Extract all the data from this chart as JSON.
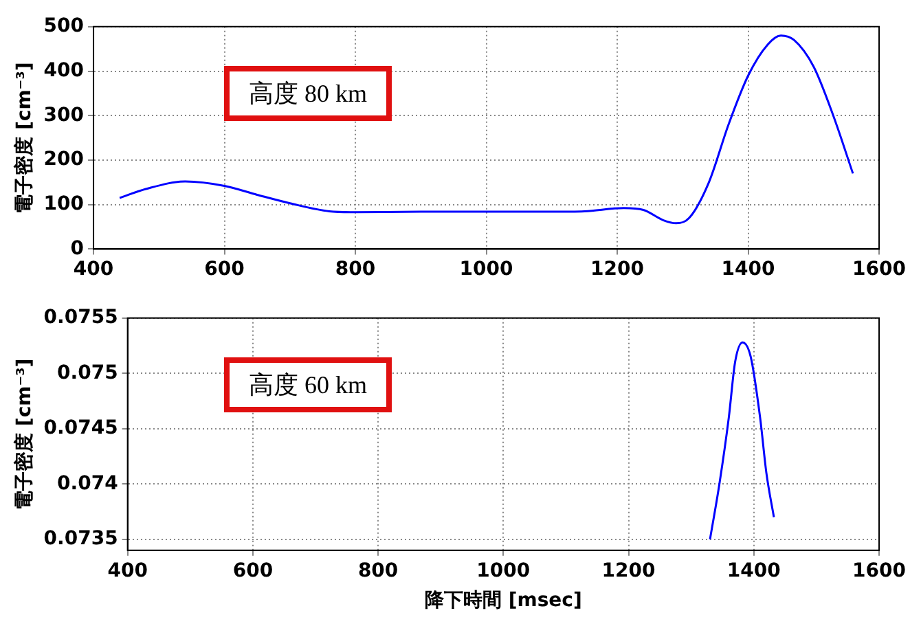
{
  "chart_data": [
    {
      "type": "line",
      "ylabel": "電子密度 [cm⁻³]",
      "annotations": [
        "高度 80 km"
      ],
      "xlim": [
        400,
        1600
      ],
      "xticks": [
        400,
        600,
        800,
        1000,
        1200,
        1400,
        1600
      ],
      "ylim": [
        0,
        500
      ],
      "yticks": [
        0,
        100,
        200,
        300,
        400,
        500
      ],
      "grid": true,
      "marker": "none",
      "line_style": "solid",
      "series": [
        {
          "color": "#0000ff",
          "x": [
            440,
            480,
            540,
            600,
            650,
            700,
            760,
            800,
            900,
            1000,
            1100,
            1150,
            1210,
            1240,
            1270,
            1290,
            1310,
            1340,
            1370,
            1400,
            1430,
            1450,
            1470,
            1500,
            1530,
            1560
          ],
          "values": [
            115,
            135,
            152,
            142,
            122,
            103,
            85,
            83,
            84,
            84,
            84,
            85,
            92,
            88,
            65,
            58,
            70,
            150,
            280,
            390,
            460,
            480,
            470,
            410,
            300,
            170
          ]
        }
      ]
    },
    {
      "type": "line",
      "xlabel": "降下時間 [msec]",
      "ylabel": "電子密度 [cm⁻³]",
      "annotations": [
        "高度 60 km"
      ],
      "xlim": [
        400,
        1600
      ],
      "xticks": [
        400,
        600,
        800,
        1000,
        1200,
        1400,
        1600
      ],
      "ylim": [
        0.0734,
        0.0755
      ],
      "yticks": [
        0.0735,
        0.074,
        0.0745,
        0.075,
        0.0755
      ],
      "grid": true,
      "marker": "none",
      "line_style": "solid",
      "series": [
        {
          "color": "#0000ff",
          "x": [
            1330,
            1345,
            1360,
            1370,
            1382,
            1395,
            1410,
            1420,
            1432
          ],
          "values": [
            0.0735,
            0.074,
            0.0746,
            0.0751,
            0.07528,
            0.07515,
            0.0746,
            0.0741,
            0.0737
          ]
        }
      ]
    }
  ]
}
